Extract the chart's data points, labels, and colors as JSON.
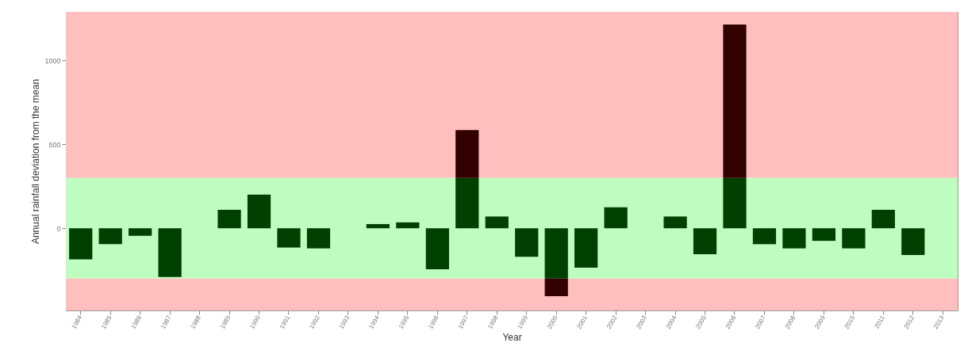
{
  "chart_data": {
    "type": "bar",
    "xlabel": "Year",
    "ylabel": "Annual rainfall deviation from the mean",
    "categories": [
      "1984",
      "1985",
      "1986",
      "1987",
      "1988",
      "1989",
      "1990",
      "1991",
      "1992",
      "1993",
      "1994",
      "1995",
      "1996",
      "1997",
      "1998",
      "1999",
      "2000",
      "2001",
      "2002",
      "2003",
      "2004",
      "2005",
      "2006",
      "2007",
      "2008",
      "2009",
      "2010",
      "2011",
      "2012",
      "2013"
    ],
    "stacked": true,
    "series": [
      {
        "color": "#004000",
        "values": [
          -185,
          -95,
          -45,
          -290,
          null,
          110,
          200,
          -115,
          -120,
          null,
          25,
          35,
          -245,
          300,
          70,
          -170,
          -300,
          -235,
          125,
          0,
          70,
          -155,
          300,
          -95,
          -120,
          -75,
          -120,
          110,
          -160,
          0
        ]
      },
      {
        "color": "#330000",
        "values": [
          null,
          null,
          null,
          null,
          null,
          null,
          null,
          null,
          null,
          null,
          null,
          null,
          null,
          285,
          null,
          null,
          -105,
          null,
          null,
          null,
          null,
          null,
          915,
          null,
          null,
          null,
          null,
          null,
          null,
          null
        ]
      }
    ],
    "ylim": [
      -490,
      1290
    ],
    "yticks": [
      0,
      500,
      1000
    ],
    "grid": false,
    "bands": [
      {
        "axis": "y",
        "from": 300,
        "to": 1290,
        "color": "#ffbfbf"
      },
      {
        "axis": "y",
        "from": -300,
        "to": 300,
        "color": "#bffcbf"
      },
      {
        "axis": "y",
        "from": -490,
        "to": -300,
        "color": "#ffbfbf"
      }
    ]
  }
}
